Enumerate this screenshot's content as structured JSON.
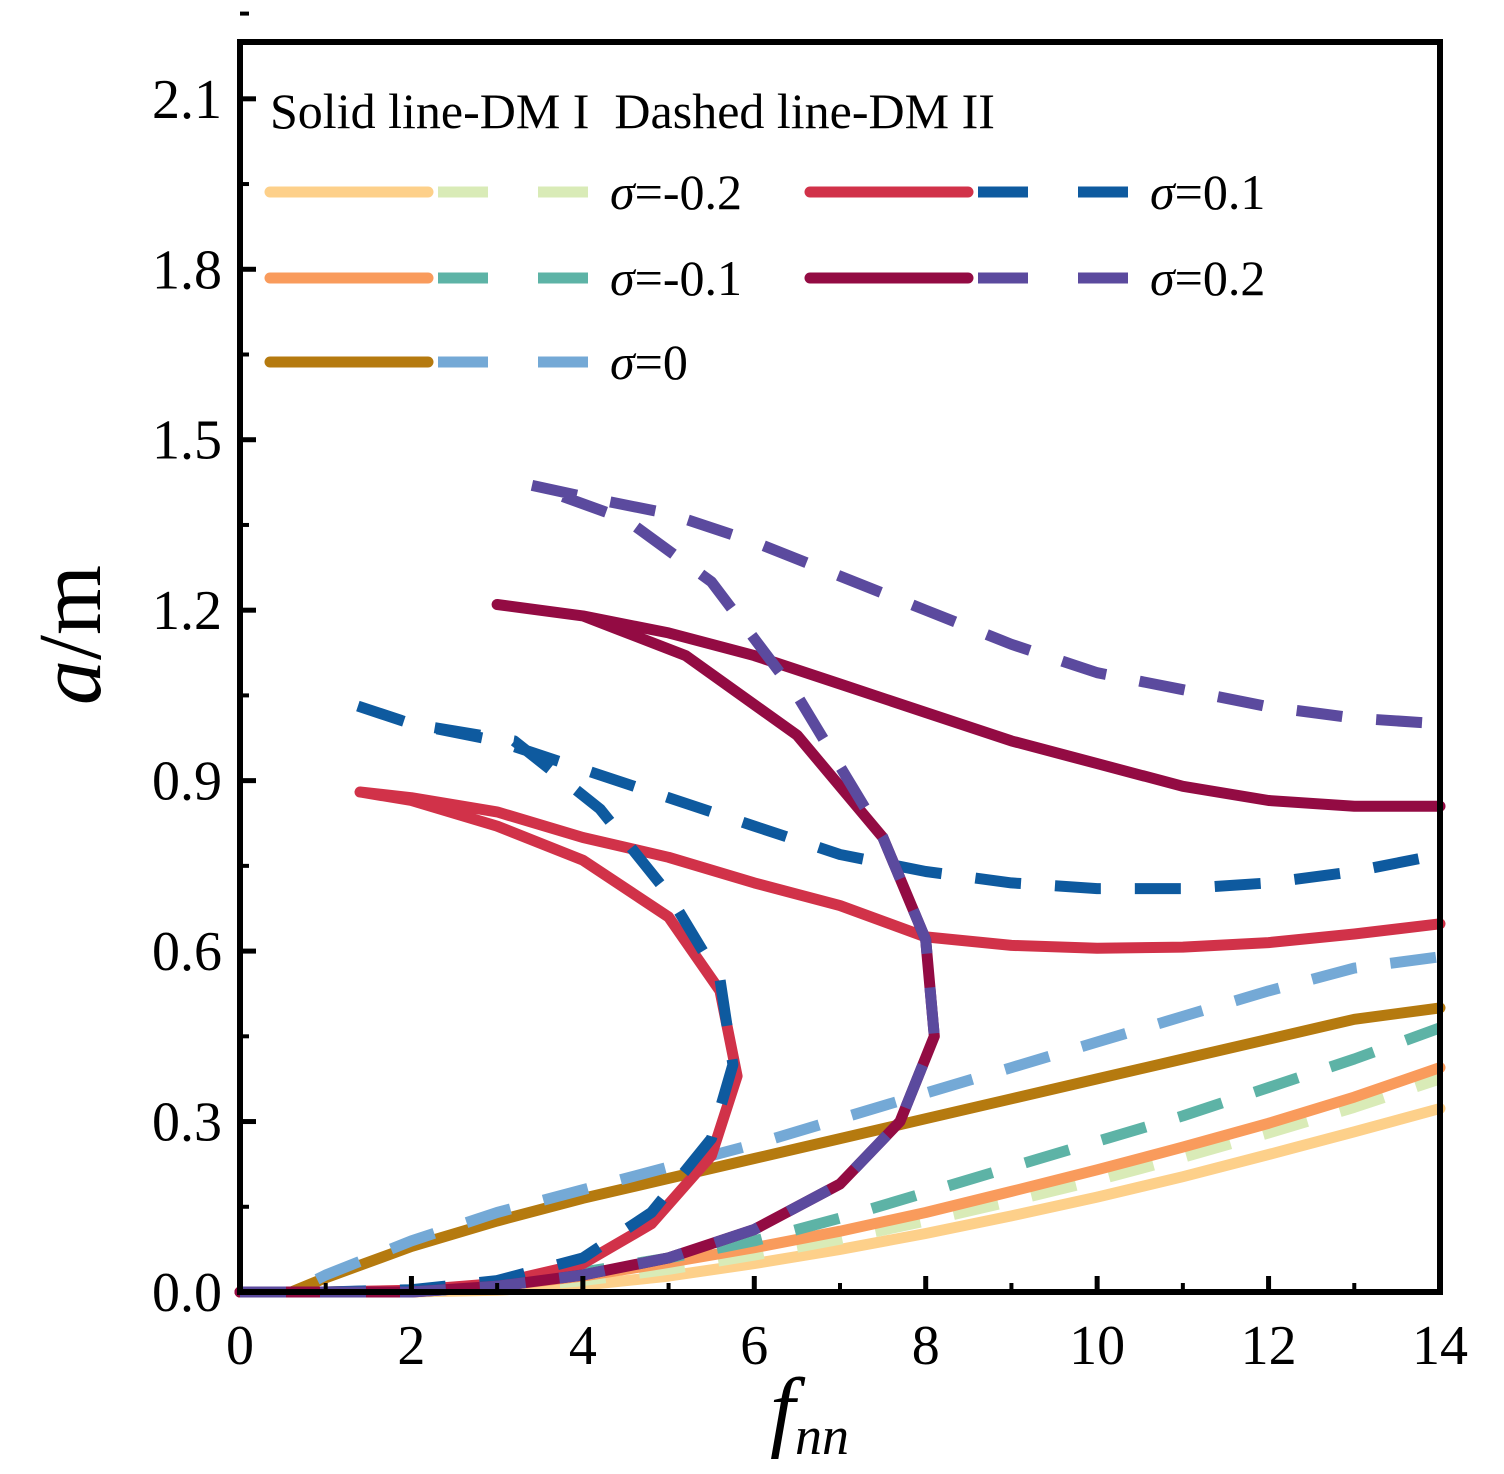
{
  "chart_data": {
    "type": "line",
    "title": "",
    "note": "Solid line-DM I  Dashed line-DM II",
    "xlabel": "f",
    "xlabel_subscript": "nn",
    "ylabel_var": "a",
    "ylabel_unit": "/m",
    "xlim": [
      0,
      14
    ],
    "ylim": [
      0,
      2.2
    ],
    "xticks": [
      "0",
      "2",
      "4",
      "6",
      "8",
      "10",
      "12",
      "14"
    ],
    "xtick_values": [
      0,
      2,
      4,
      6,
      8,
      10,
      12,
      14
    ],
    "yticks": [
      "0.0",
      "0.3",
      "0.6",
      "0.9",
      "1.2",
      "1.5",
      "1.8",
      "2.1"
    ],
    "ytick_values": [
      0,
      0.3,
      0.6,
      0.9,
      1.2,
      1.5,
      1.8,
      2.1
    ],
    "legend": [
      {
        "sigma_label": "=-0.2",
        "solid_color": "#fdd08a",
        "dashed_color": "#d9ebb7"
      },
      {
        "sigma_label": "=-0.1",
        "solid_color": "#f99b5c",
        "dashed_color": "#5db3a6"
      },
      {
        "sigma_label": "=0",
        "solid_color": "#b57a0f",
        "dashed_color": "#74a9d6"
      },
      {
        "sigma_label": "=0.1",
        "solid_color": "#d13249",
        "dashed_color": "#0e5a9f"
      },
      {
        "sigma_label": "=0.2",
        "solid_color": "#930b43",
        "dashed_color": "#5b4a9e"
      }
    ],
    "series": [
      {
        "name": "DM I σ=-0.2",
        "style": "solid",
        "color": "#fdd08a",
        "x": [
          0,
          1,
          2,
          3,
          4,
          5,
          6,
          7,
          8,
          9,
          10,
          11,
          12,
          13,
          14
        ],
        "y": [
          0,
          0,
          0,
          0.003,
          0.012,
          0.028,
          0.05,
          0.075,
          0.103,
          0.134,
          0.167,
          0.203,
          0.242,
          0.282,
          0.323
        ]
      },
      {
        "name": "DM II σ=-0.2",
        "style": "dashed",
        "color": "#d9ebb7",
        "x": [
          0,
          1,
          2,
          3,
          4,
          5,
          6,
          7,
          8,
          9,
          10,
          11,
          12,
          13,
          14
        ],
        "y": [
          0,
          0,
          0.001,
          0.006,
          0.02,
          0.04,
          0.065,
          0.093,
          0.125,
          0.16,
          0.197,
          0.237,
          0.28,
          0.325,
          0.375
        ]
      },
      {
        "name": "DM I σ=-0.1",
        "style": "solid",
        "color": "#f99b5c",
        "x": [
          0,
          1,
          2,
          3,
          4,
          5,
          6,
          7,
          8,
          9,
          10,
          11,
          12,
          13,
          14
        ],
        "y": [
          0,
          0,
          0.002,
          0.01,
          0.028,
          0.052,
          0.078,
          0.107,
          0.14,
          0.177,
          0.215,
          0.255,
          0.297,
          0.343,
          0.395
        ]
      },
      {
        "name": "DM II σ=-0.1",
        "style": "dashed",
        "color": "#5db3a6",
        "x": [
          0,
          1,
          2,
          3,
          4,
          5,
          6,
          7,
          8,
          9,
          10,
          11,
          12,
          13,
          14
        ],
        "y": [
          0,
          0,
          0.003,
          0.015,
          0.035,
          0.06,
          0.09,
          0.13,
          0.175,
          0.22,
          0.265,
          0.31,
          0.36,
          0.41,
          0.465
        ]
      },
      {
        "name": "DM I σ=0",
        "style": "solid",
        "color": "#b57a0f",
        "x": [
          0,
          0.6,
          1,
          2,
          3,
          4,
          5,
          6,
          7,
          8,
          9,
          10,
          11,
          12,
          13,
          14
        ],
        "y": [
          0,
          0,
          0.025,
          0.08,
          0.125,
          0.165,
          0.2,
          0.235,
          0.27,
          0.305,
          0.34,
          0.375,
          0.41,
          0.445,
          0.48,
          0.5
        ]
      },
      {
        "name": "DM II σ=0",
        "style": "dashed",
        "color": "#74a9d6",
        "x": [
          0,
          0.6,
          1,
          2,
          3,
          4,
          5,
          6,
          7,
          8,
          9,
          10,
          11,
          12,
          13,
          14
        ],
        "y": [
          0,
          0,
          0.03,
          0.09,
          0.14,
          0.18,
          0.22,
          0.26,
          0.305,
          0.35,
          0.395,
          0.44,
          0.485,
          0.53,
          0.57,
          0.59
        ]
      },
      {
        "name": "DM I σ=0.1",
        "style": "solid",
        "color": "#d13249",
        "x": [
          0,
          1,
          2,
          3,
          4,
          4.8,
          5.5,
          5.8,
          5.6,
          5.0,
          4.0,
          3.0,
          2.0,
          1.4,
          2.0,
          3.0,
          4.0,
          5.0,
          6.0,
          7.0,
          8.0,
          9.0,
          10.0,
          11.0,
          12.0,
          13.0,
          14.0
        ],
        "y": [
          0,
          0,
          0.003,
          0.015,
          0.05,
          0.12,
          0.24,
          0.38,
          0.53,
          0.66,
          0.76,
          0.82,
          0.865,
          0.88,
          0.87,
          0.845,
          0.8,
          0.765,
          0.72,
          0.68,
          0.625,
          0.61,
          0.605,
          0.607,
          0.615,
          0.63,
          0.648
        ]
      },
      {
        "name": "DM II σ=0.1",
        "style": "dashed",
        "color": "#0e5a9f",
        "x": [
          0,
          1,
          2,
          3,
          4,
          4.8,
          5.5,
          5.75,
          5.6,
          5.0,
          4.2,
          3.2,
          2.0,
          1.2,
          2.0,
          3.0,
          4.0,
          5.0,
          6.0,
          7.0,
          8.0,
          9.0,
          10.0,
          11.0,
          12.0,
          13.0,
          14.0
        ],
        "y": [
          0,
          0,
          0.004,
          0.02,
          0.06,
          0.14,
          0.27,
          0.4,
          0.55,
          0.7,
          0.85,
          0.97,
          1.0,
          1.04,
          1.0,
          0.97,
          0.92,
          0.87,
          0.82,
          0.77,
          0.74,
          0.72,
          0.71,
          0.71,
          0.72,
          0.74,
          0.77
        ]
      },
      {
        "name": "DM I σ=0.2",
        "style": "solid",
        "color": "#930b43",
        "x": [
          0,
          1,
          2,
          3,
          4,
          5,
          6,
          7,
          7.7,
          8.1,
          8.0,
          7.5,
          6.5,
          5.2,
          4.0,
          3.0,
          4.0,
          5.0,
          6.0,
          7.0,
          8.0,
          9.0,
          10.0,
          11.0,
          12.0,
          13.0,
          14.0
        ],
        "y": [
          0,
          0,
          0,
          0.01,
          0.03,
          0.06,
          0.11,
          0.19,
          0.3,
          0.45,
          0.62,
          0.8,
          0.98,
          1.12,
          1.19,
          1.21,
          1.19,
          1.16,
          1.12,
          1.07,
          1.02,
          0.97,
          0.93,
          0.89,
          0.865,
          0.855,
          0.855
        ]
      },
      {
        "name": "DM II σ=0.2",
        "style": "dashed",
        "color": "#5b4a9e",
        "x": [
          0,
          1,
          2,
          3,
          4,
          5,
          6,
          7,
          7.7,
          8.1,
          8.0,
          7.5,
          6.5,
          5.5,
          4.5,
          3.4,
          4.0,
          5.0,
          6.0,
          7.0,
          8.0,
          9.0,
          10.0,
          11.0,
          12.0,
          13.0,
          14.0
        ],
        "y": [
          0,
          0,
          0,
          0.01,
          0.03,
          0.06,
          0.11,
          0.19,
          0.3,
          0.45,
          0.62,
          0.8,
          1.05,
          1.25,
          1.36,
          1.42,
          1.4,
          1.37,
          1.32,
          1.26,
          1.2,
          1.14,
          1.09,
          1.06,
          1.03,
          1.01,
          1.0
        ]
      }
    ]
  }
}
